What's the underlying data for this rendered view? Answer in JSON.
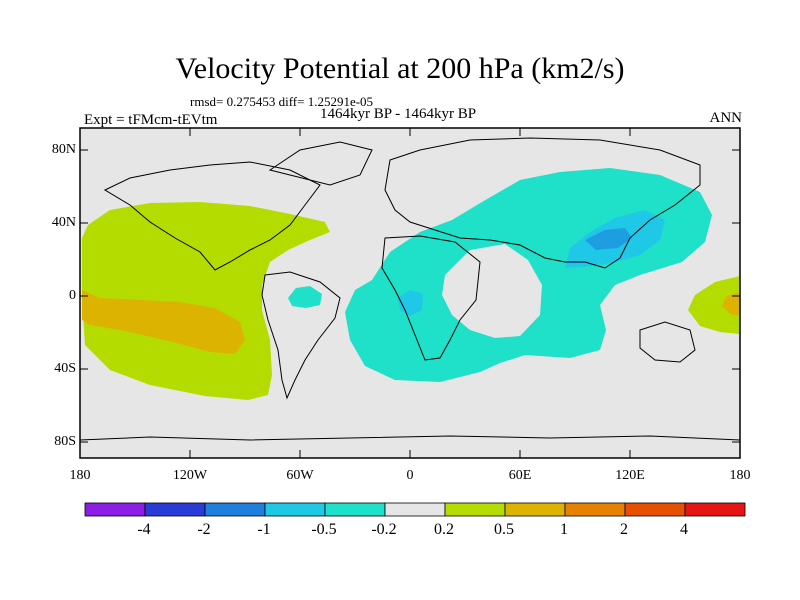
{
  "header": {
    "title": "Velocity Potential at 200 hPa (km2/s)",
    "stats": "rmsd= 0.275453  diff= 1.25291e-05",
    "experiment": "Expt = tFMcm-tEVtm",
    "period": "1464kyr BP - 1464kyr BP",
    "season": "ANN"
  },
  "axes": {
    "x_ticks": [
      "180",
      "120W",
      "60W",
      "0",
      "60E",
      "120E",
      "180"
    ],
    "y_ticks": [
      "80N",
      "40N",
      "0",
      "40S",
      "80S"
    ]
  },
  "colorbar": {
    "labels": [
      "-4",
      "-2",
      "-1",
      "-0.5",
      "-0.2",
      "0.2",
      "0.5",
      "1",
      "2",
      "4"
    ],
    "colors": [
      "#8c1ee6",
      "#2a3cd6",
      "#1e7fdc",
      "#1ec8e6",
      "#1fe0c8",
      "#e6e6e6",
      "#b4dc00",
      "#dcb400",
      "#e68200",
      "#e65000",
      "#e61414"
    ]
  },
  "colors": {
    "background": "#e6e6e6",
    "positive_weak": "#b4dc00",
    "positive_mid": "#dcb400",
    "negative_weak": "#1fe0c8",
    "negative_mid": "#1ec8e6",
    "negative_strong": "#1e7fdc"
  }
}
